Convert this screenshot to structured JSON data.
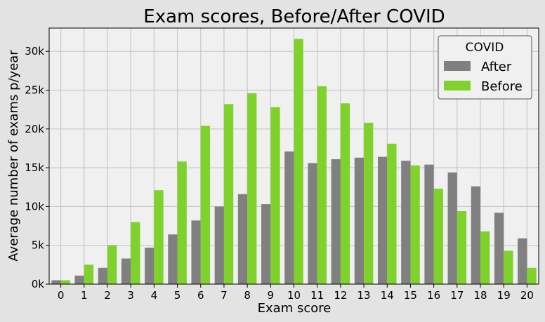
{
  "chart_data": {
    "type": "bar",
    "title": "Exam scores, Before/After COVID",
    "xlabel": "Exam score",
    "ylabel": "Average number of exams p/year",
    "categories": [
      "0",
      "1",
      "2",
      "3",
      "4",
      "5",
      "6",
      "7",
      "8",
      "9",
      "10",
      "11",
      "12",
      "13",
      "14",
      "15",
      "16",
      "17",
      "18",
      "19",
      "20"
    ],
    "series": [
      {
        "name": "After",
        "color": "#808080",
        "values": [
          500,
          1100,
          2100,
          3300,
          4700,
          6400,
          8200,
          10000,
          11600,
          10300,
          17100,
          15600,
          16100,
          16300,
          16400,
          15900,
          15400,
          14400,
          12600,
          9200,
          5900
        ]
      },
      {
        "name": "Before",
        "color": "#7fd12b",
        "values": [
          500,
          2500,
          5000,
          8000,
          12100,
          15800,
          20400,
          23200,
          24600,
          22800,
          31600,
          25500,
          23300,
          20800,
          18100,
          15300,
          12300,
          9400,
          6800,
          4300,
          2100
        ]
      }
    ],
    "ylim": [
      0,
      33000
    ],
    "yticks": [
      0,
      5000,
      10000,
      15000,
      20000,
      25000,
      30000
    ],
    "ytick_labels": [
      "0k",
      "5k",
      "10k",
      "15k",
      "20k",
      "25k",
      "30k"
    ],
    "grid": true,
    "legend": {
      "title": "COVID",
      "position": "top-right"
    },
    "colors": {
      "plot_background": "#f0f0f0",
      "figure_background": "#e3e3e3",
      "grid": "#c8c8c8"
    }
  }
}
